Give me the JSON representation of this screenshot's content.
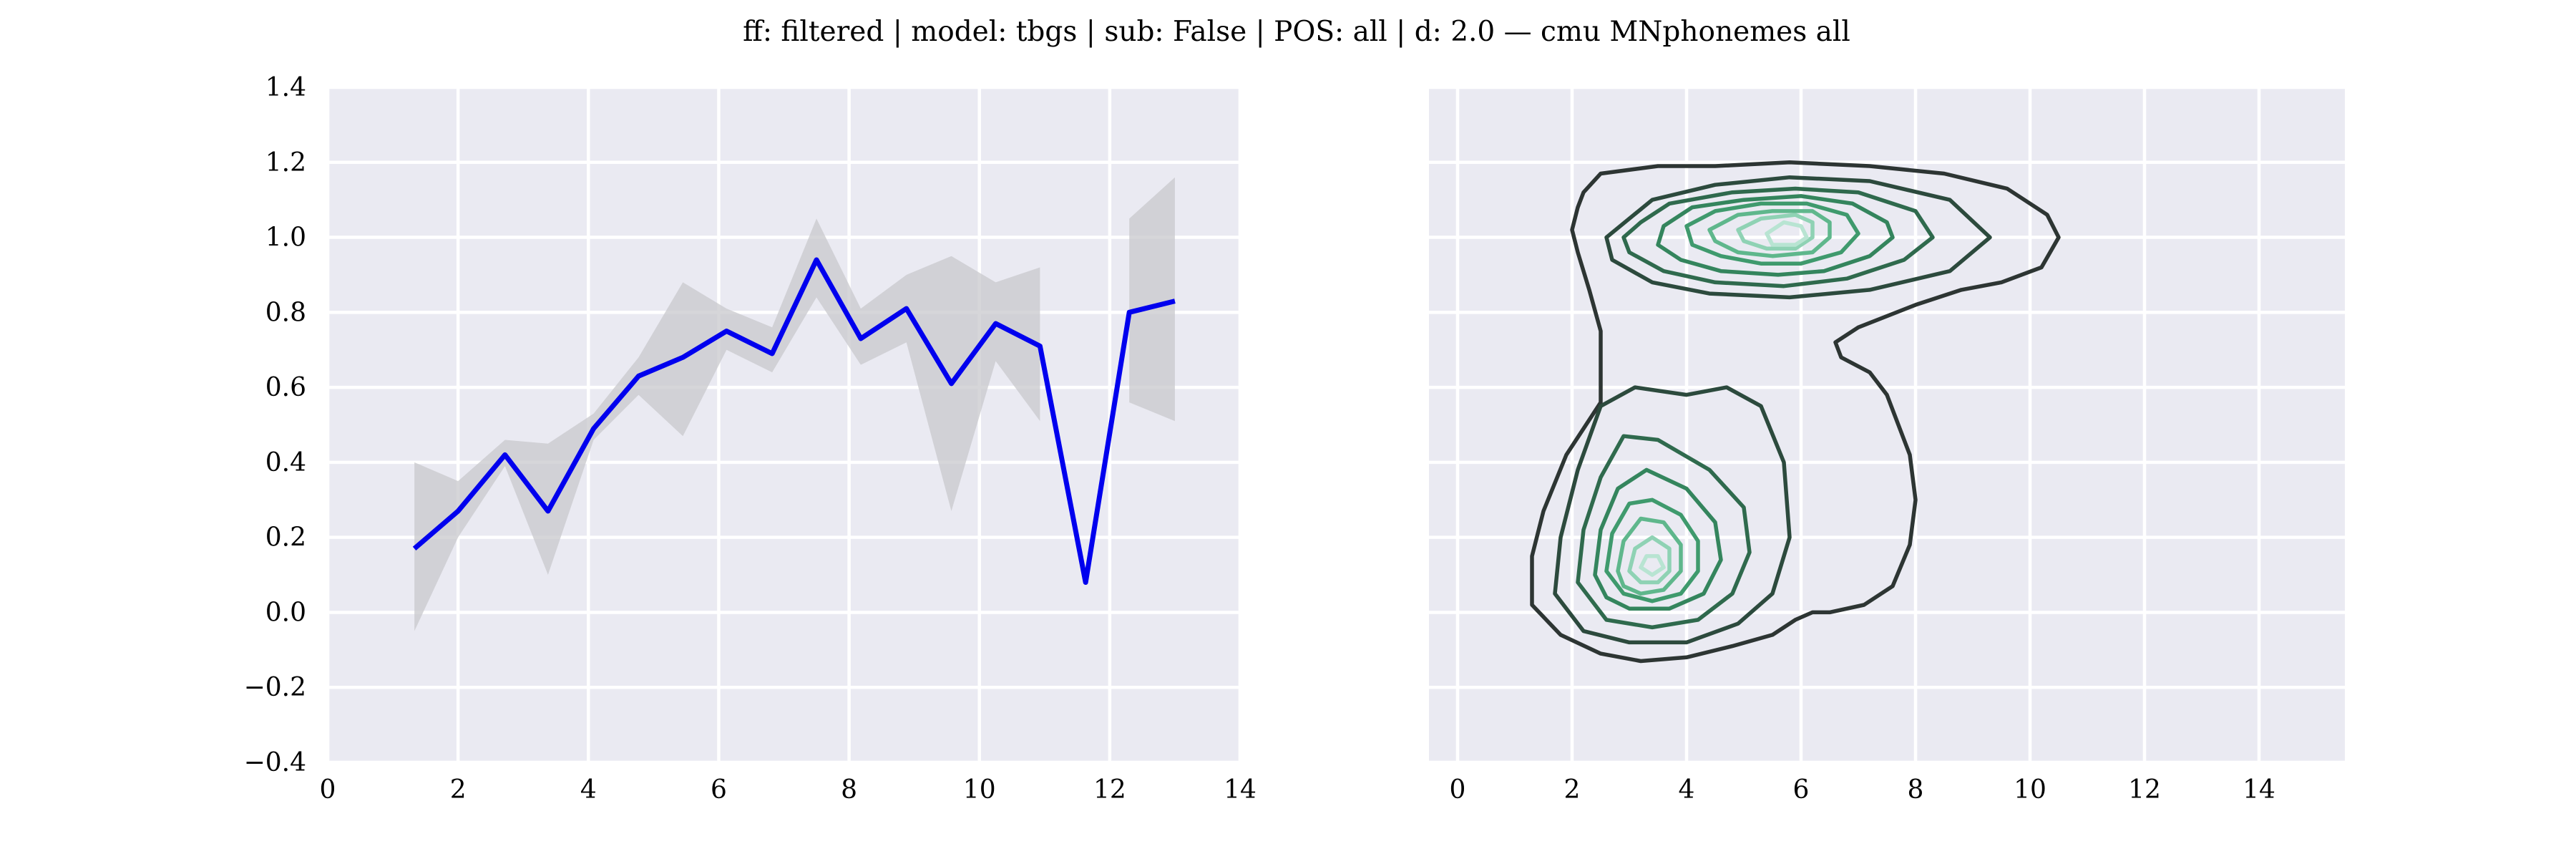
{
  "figure": {
    "title": "ff: filtered | model: tbgs | sub: False | POS: all | d: 2.0 — cmu MNphonemes all"
  },
  "colors": {
    "axes_bg": "#eaeaf2",
    "grid": "#ffffff",
    "line": "#0000ee",
    "band": "#c8c8cc",
    "contour_levels": [
      "#2d3533",
      "#2c4a3d",
      "#2f6a4d",
      "#34855d",
      "#3f9a6d",
      "#5fb78c",
      "#8fd2b4",
      "#b8e4d2"
    ]
  },
  "chart_data": [
    {
      "type": "line",
      "title": "",
      "xlabel": "",
      "ylabel": "",
      "xlim": [
        0,
        14
      ],
      "ylim": [
        -0.4,
        1.4
      ],
      "xticks": [
        0,
        2,
        4,
        6,
        8,
        10,
        12,
        14
      ],
      "yticks": [
        -0.4,
        -0.2,
        0.0,
        0.2,
        0.4,
        0.6,
        0.8,
        1.0,
        1.2,
        1.4
      ],
      "xtick_labels": [
        "0",
        "2",
        "4",
        "6",
        "8",
        "10",
        "12",
        "14"
      ],
      "ytick_labels": [
        "−0.4",
        "−0.2",
        "0.0",
        "0.2",
        "0.4",
        "0.6",
        "0.8",
        "1.0",
        "1.2",
        "1.4"
      ],
      "grid": true,
      "series": [
        {
          "x": [
            1.33,
            2.0,
            2.72,
            3.38,
            4.08,
            4.77,
            5.45,
            6.12,
            6.82,
            7.5,
            8.18,
            8.88,
            9.57,
            10.25,
            10.93,
            11.63,
            12.3,
            13.0
          ],
          "y": [
            0.17,
            0.27,
            0.42,
            0.27,
            0.49,
            0.63,
            0.68,
            0.75,
            0.69,
            0.94,
            0.73,
            0.81,
            0.61,
            0.77,
            0.71,
            0.08,
            0.8,
            0.83
          ],
          "ci_low": [
            -0.05,
            0.2,
            0.39,
            0.1,
            0.46,
            0.58,
            0.47,
            0.7,
            0.64,
            0.84,
            0.66,
            0.72,
            0.27,
            0.67,
            0.51,
            null,
            0.56,
            0.51
          ],
          "ci_high": [
            0.4,
            0.35,
            0.46,
            0.45,
            0.53,
            0.68,
            0.88,
            0.81,
            0.76,
            1.05,
            0.81,
            0.9,
            0.95,
            0.88,
            0.92,
            null,
            1.05,
            1.16
          ]
        }
      ]
    },
    {
      "type": "kde-contour",
      "title": "",
      "xlabel": "",
      "ylabel": "",
      "xlim": [
        -0.5,
        15.5
      ],
      "ylim": [
        -0.4,
        1.4
      ],
      "xticks": [
        0,
        2,
        4,
        6,
        8,
        10,
        12,
        14
      ],
      "yticks": [
        -0.4,
        -0.2,
        0.0,
        0.2,
        0.4,
        0.6,
        0.8,
        1.0,
        1.2,
        1.4
      ],
      "xtick_labels": [
        "0",
        "2",
        "4",
        "6",
        "8",
        "10",
        "12",
        "14"
      ],
      "grid": true,
      "clusters": [
        {
          "center_x": 5.8,
          "center_y": 1.0,
          "levels": 8
        },
        {
          "center_x": 3.3,
          "center_y": 0.12,
          "levels": 7
        }
      ]
    }
  ]
}
